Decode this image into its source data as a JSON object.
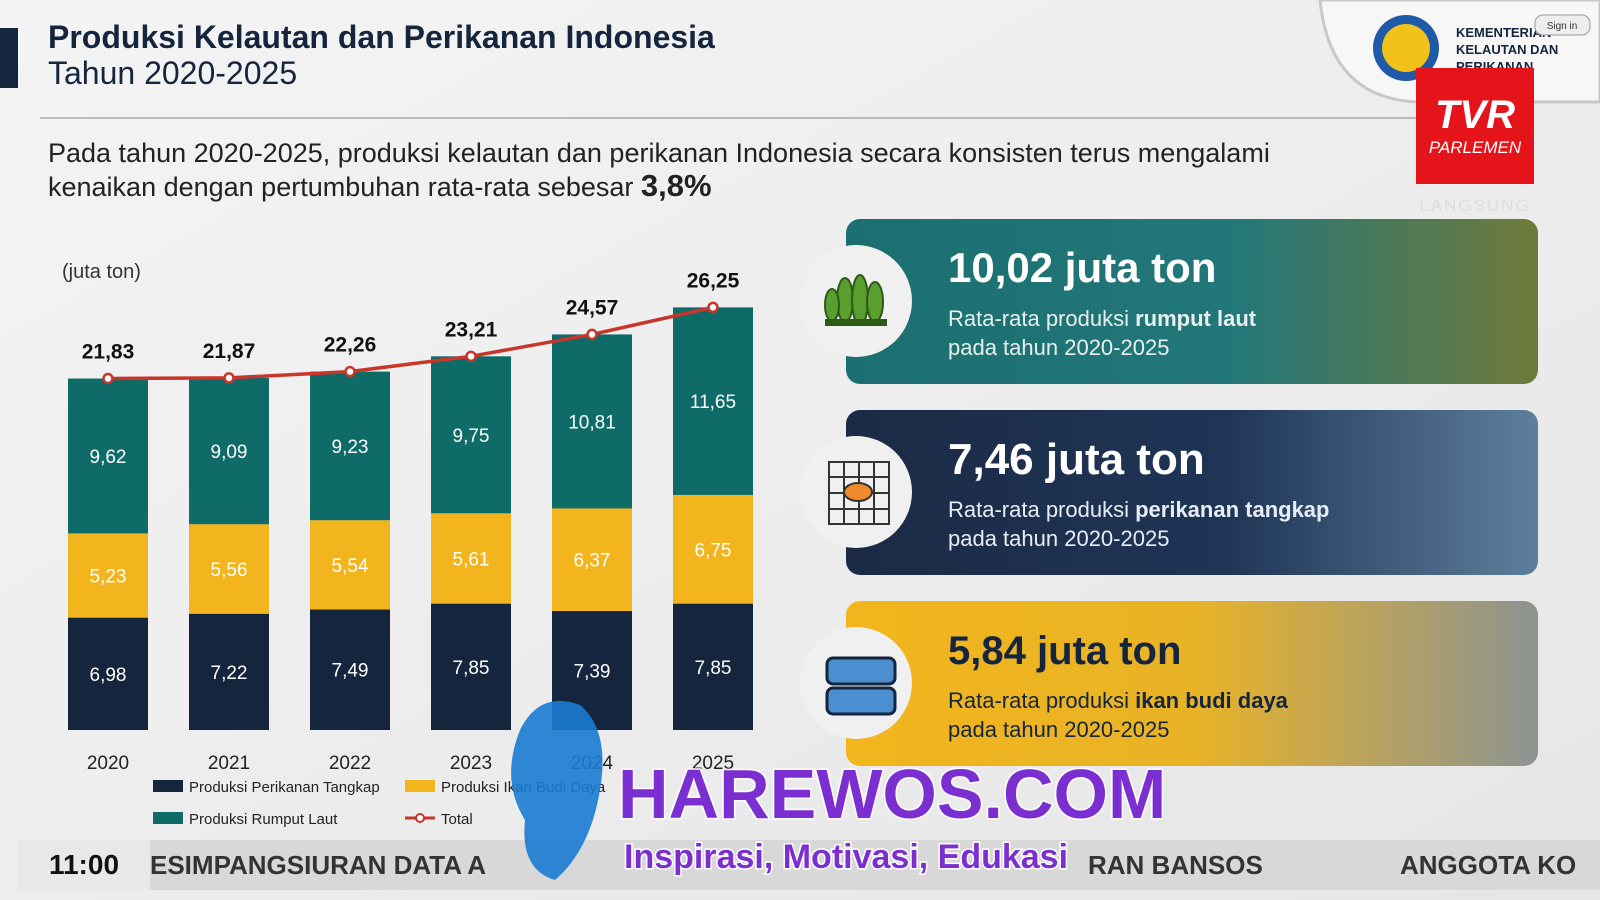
{
  "header": {
    "title": "Produksi Kelautan dan Perikanan Indonesia",
    "subtitle": "Tahun 2020-2025",
    "intro_line1": "Pada tahun 2020-2025, produksi kelautan dan perikanan Indonesia secara konsisten terus mengalami",
    "intro_line2": "kenaikan dengan pertumbuhan rata-rata sebesar",
    "intro_highlight": "3,8%"
  },
  "logo": {
    "ministry": [
      "KEMENTERIAN",
      "KELAUTAN DAN",
      "PERIKANAN"
    ],
    "sign_in": "Sign in"
  },
  "broadcast": {
    "channel": "TVR",
    "channel_sub": "PARLEMEN",
    "live": "LANGSUNG",
    "time": "11:00",
    "ticker": [
      "ESIMPANGSIURAN DATA A",
      "RAN BANSOS",
      "ANGGOTA KO"
    ]
  },
  "watermark": {
    "site": "HAREWOS.COM",
    "tagline": "Inspirasi, Motivasi, Edukasi"
  },
  "cards": [
    {
      "headline": "10,02 juta ton",
      "text": "Rata-rata produksi ",
      "bold": "rumput laut",
      "line2": "pada tahun 2020-2025"
    },
    {
      "headline": "7,46 juta ton",
      "text": "Rata-rata produksi ",
      "bold": "perikanan tangkap",
      "line2": "pada tahun 2020-2025"
    },
    {
      "headline": "5,84 juta ton",
      "text": "Rata-rata produksi ",
      "bold": "ikan budi daya",
      "line2": "pada tahun 2020-2025"
    }
  ],
  "chart_data": {
    "type": "bar",
    "stacked": true,
    "unit_label": "(juta ton)",
    "categories": [
      "2020",
      "2021",
      "2022",
      "2023",
      "2024",
      "2025"
    ],
    "series": [
      {
        "name": "Produksi Perikanan Tangkap",
        "color": "#14253d",
        "values": [
          6.98,
          7.22,
          7.49,
          7.85,
          7.39,
          7.85
        ],
        "value_labels": [
          "6,98",
          "7,22",
          "7,49",
          "7,85",
          "7,39",
          "7,85"
        ]
      },
      {
        "name": "Produksi Ikan Budi Daya",
        "color": "#f2b51d",
        "values": [
          5.23,
          5.56,
          5.54,
          5.61,
          6.37,
          6.75
        ],
        "value_labels": [
          "5,23",
          "5,56",
          "5,54",
          "5,61",
          "6,37",
          "6,75"
        ]
      },
      {
        "name": "Produksi Rumput Laut",
        "color": "#0f6b68",
        "values": [
          9.62,
          9.09,
          9.23,
          9.75,
          10.81,
          11.65
        ],
        "value_labels": [
          "9,62",
          "9,09",
          "9,23",
          "9,75",
          "10,81",
          "11,65"
        ]
      },
      {
        "name": "Total",
        "type": "line",
        "color": "#c8352b",
        "values": [
          21.83,
          21.87,
          22.26,
          23.21,
          24.57,
          26.25
        ],
        "value_labels": [
          "21,83",
          "21,87",
          "22,26",
          "23,21",
          "24,57",
          "26,25"
        ]
      }
    ]
  }
}
